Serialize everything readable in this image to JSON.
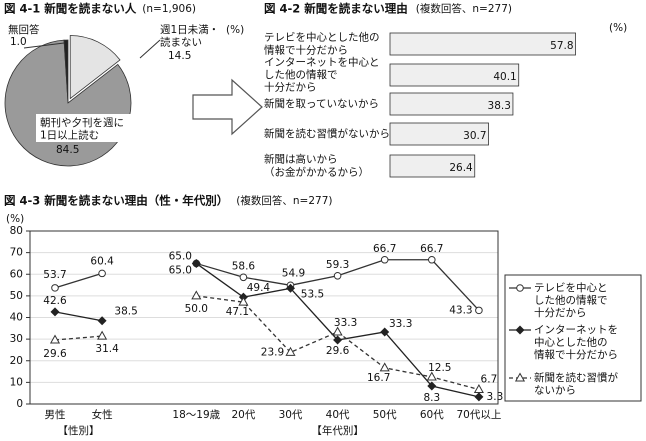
{
  "chart_data": [
    {
      "type": "pie",
      "title": "図 4-1 新聞を読まない人",
      "subtitle": "(n=1,906)",
      "unit": "(%)",
      "categories": [
        "朝刊や夕刊を週に\n1日以上読む",
        "週1日未満・\n読まない",
        "無回答"
      ],
      "values": [
        84.5,
        14.5,
        1.0
      ],
      "value_labels": [
        "84.5",
        "14.5",
        "1.0"
      ],
      "colors": [
        "#9a9a9a",
        "#e4e4e4",
        "#222222"
      ]
    },
    {
      "type": "hbar",
      "title": "図 4-2 新聞を読まない理由",
      "subtitle": "(複数回答、n=277)",
      "unit": "(%)",
      "categories": [
        "テレビを中心とした他の\n情報で十分だから",
        "インターネットを中心と\nした他の情報で\n十分だから",
        "新聞を取っていないから",
        "新聞を読む習慣がないから",
        "新聞は高いから\n（お金がかかるから）"
      ],
      "values": [
        57.8,
        40.1,
        38.3,
        30.7,
        26.4
      ],
      "color": "#efefef"
    },
    {
      "type": "line",
      "title": "図 4-3 新聞を読まない理由（性・年代別）",
      "subtitle": "(複数回答、n=277)",
      "unit": "(%)",
      "categories": [
        "男性",
        "女性",
        null,
        "18～19歳",
        "20代",
        "30代",
        "40代",
        "50代",
        "60代",
        "70代以上"
      ],
      "group_labels": [
        "【性別】",
        "【年代別】"
      ],
      "ylim": [
        0,
        80
      ],
      "yticks": [
        0,
        10,
        20,
        30,
        40,
        50,
        60,
        70,
        80
      ],
      "grid": true,
      "legend": "right",
      "series": [
        {
          "name": "テレビを中心と\nした他の情報で\n十分だから",
          "color": "#333333",
          "marker": "circle",
          "dashed": false,
          "values": [
            53.7,
            60.4,
            null,
            65.0,
            58.6,
            54.9,
            59.3,
            66.7,
            66.7,
            43.3
          ],
          "value_labels": [
            "53.7",
            "60.4",
            null,
            "65.0",
            "58.6",
            "54.9",
            "59.3",
            "66.7",
            "66.7",
            "43.3"
          ]
        },
        {
          "name": "インターネットを\n中心とした他の\n情報で十分だから",
          "color": "#222222",
          "marker": "diamond",
          "dashed": false,
          "values": [
            42.6,
            38.5,
            null,
            65.0,
            49.4,
            53.5,
            29.6,
            33.3,
            8.3,
            3.3
          ],
          "value_labels": [
            "42.6",
            "38.5",
            null,
            "65.0",
            "49.4",
            "53.5",
            "29.6",
            "33.3",
            "8.3",
            "3.3"
          ]
        },
        {
          "name": "新聞を読む習慣が\nないから",
          "color": "#333333",
          "marker": "triangle",
          "dashed": true,
          "values": [
            29.6,
            31.4,
            null,
            50.0,
            47.1,
            23.9,
            33.3,
            16.7,
            12.5,
            6.7
          ],
          "value_labels": [
            "29.6",
            "31.4",
            null,
            "50.0",
            "47.1",
            "23.9",
            "33.3",
            "16.7",
            "12.5",
            "6.7"
          ]
        }
      ]
    }
  ]
}
